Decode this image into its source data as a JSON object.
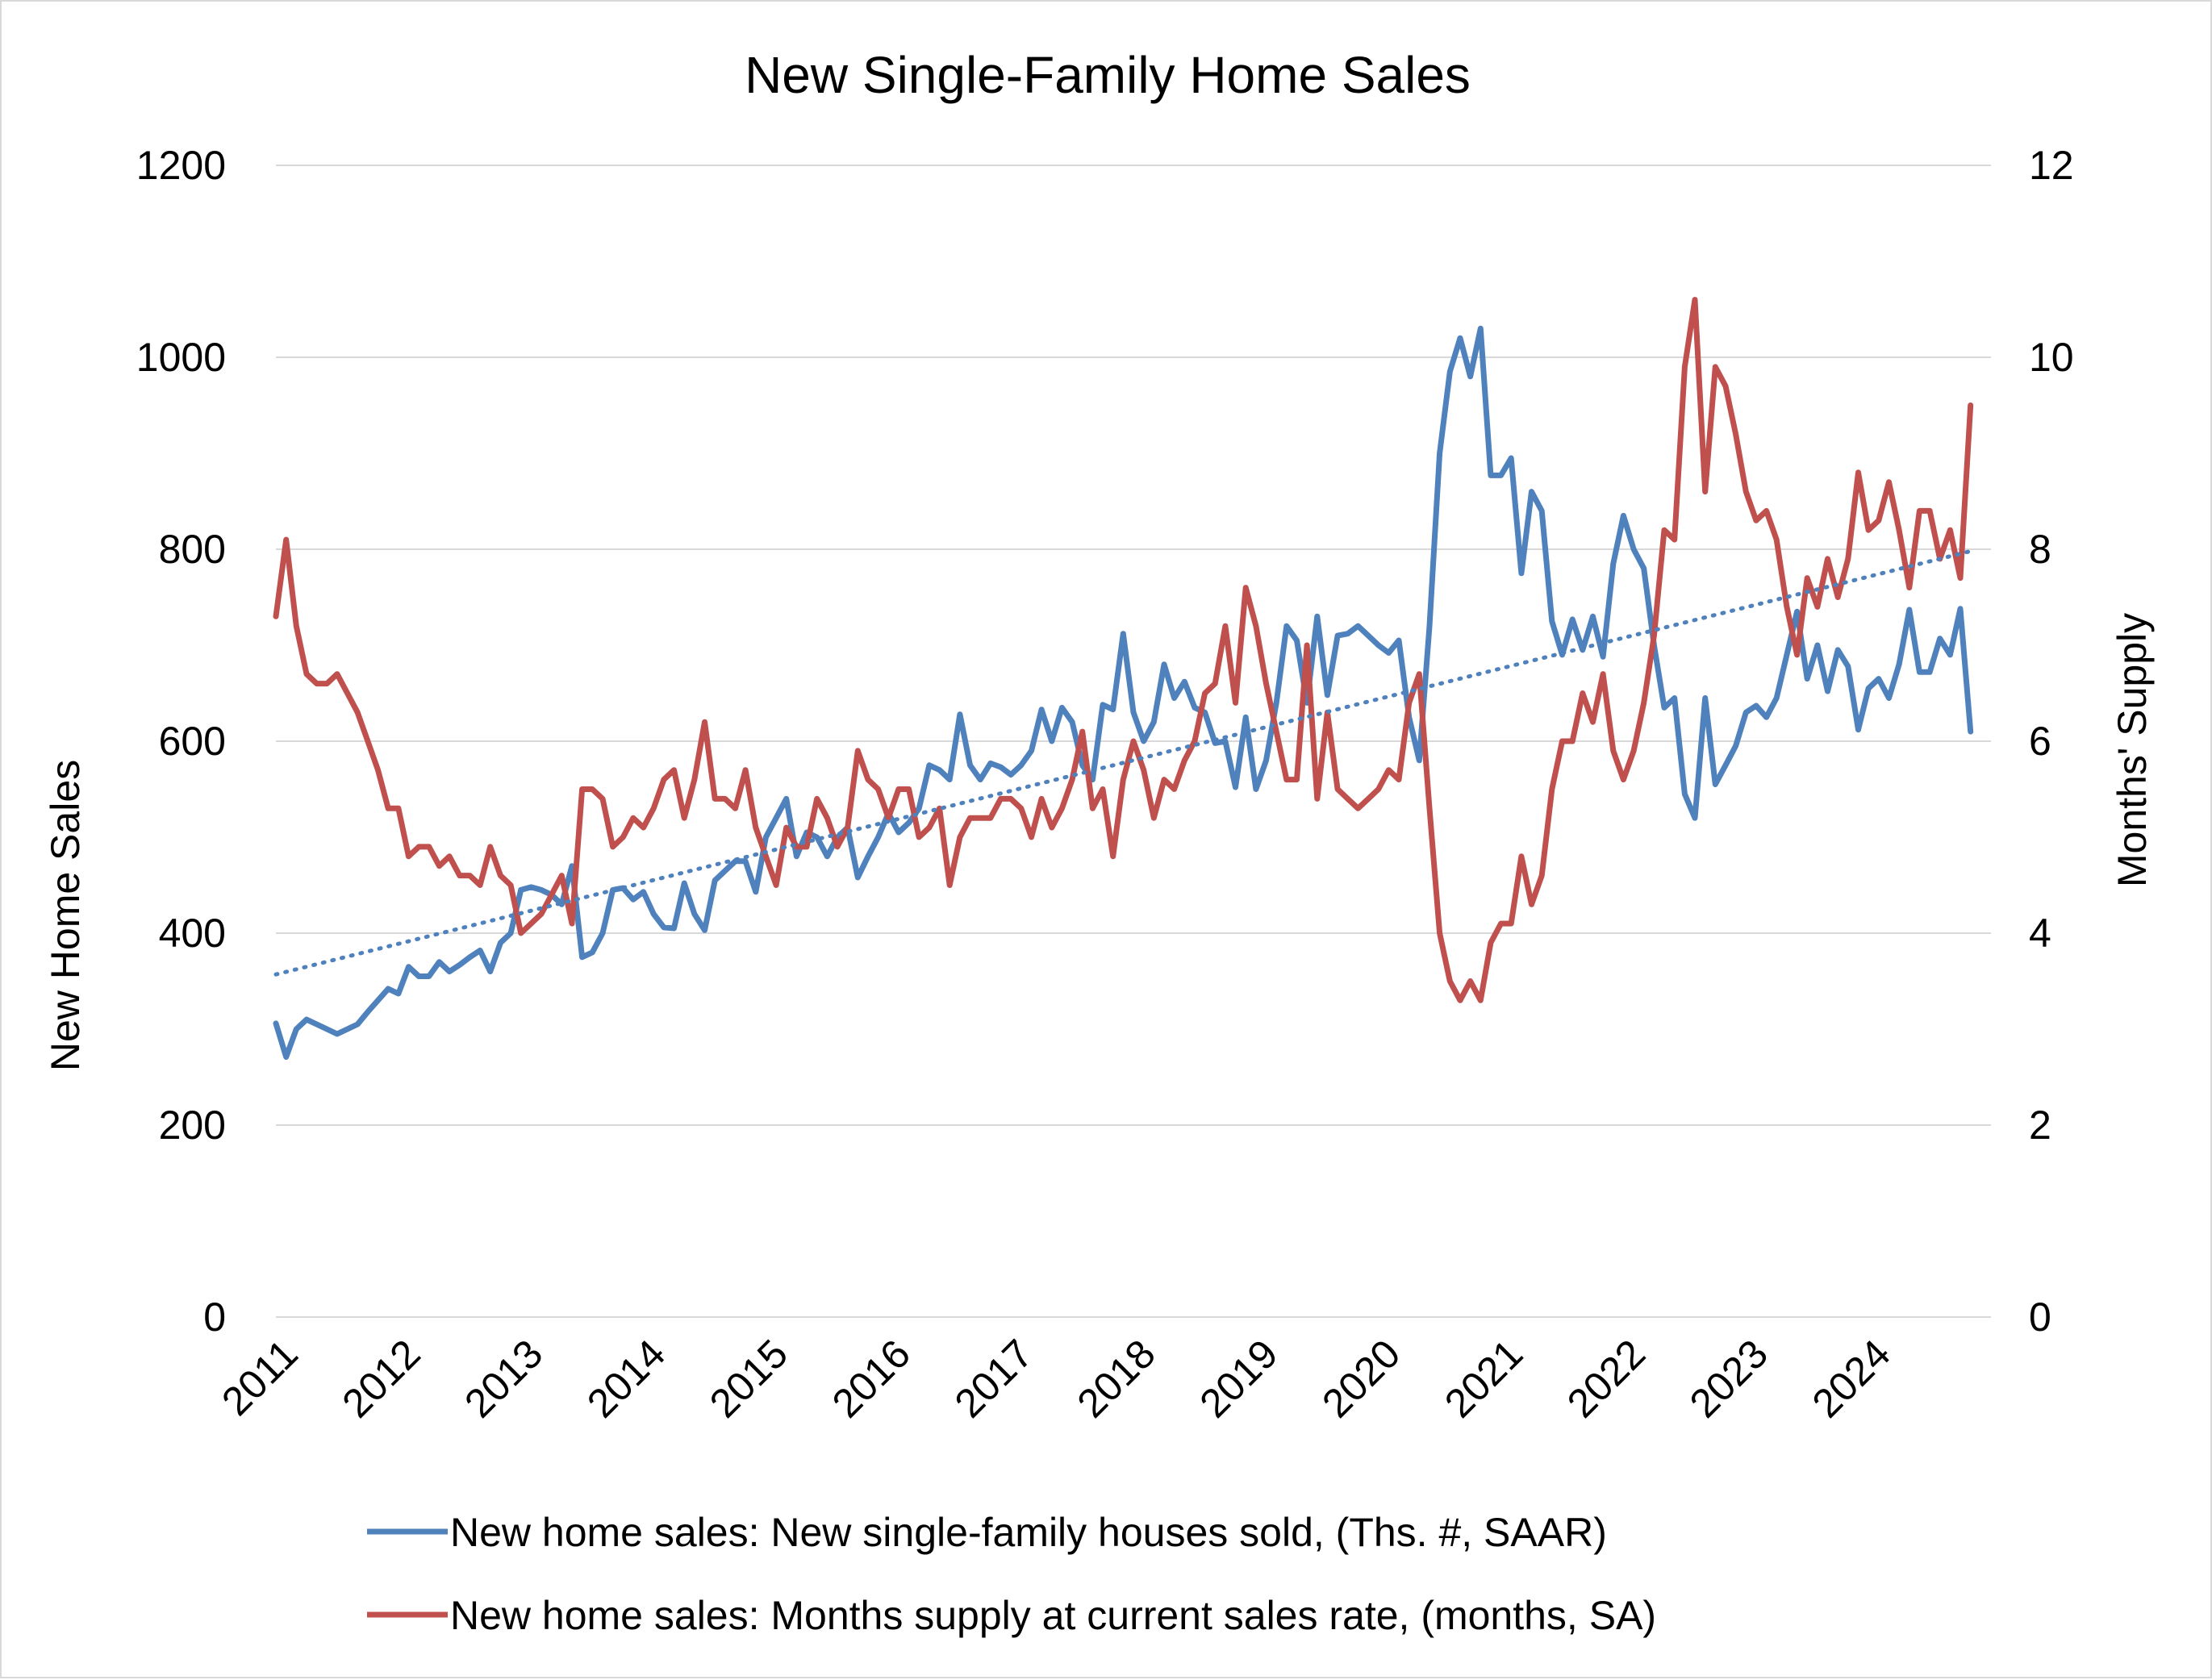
{
  "chart_data": {
    "type": "line",
    "title": "New Single-Family Home Sales",
    "ylabel": "New Home Sales",
    "y2label": "Months' Supply",
    "ylim": [
      0,
      1200
    ],
    "y2lim": [
      0,
      12
    ],
    "yticks": [
      "0",
      "200",
      "400",
      "600",
      "800",
      "1000",
      "1200"
    ],
    "y2ticks": [
      "0",
      "2",
      "4",
      "6",
      "8",
      "10",
      "12"
    ],
    "xlim": [
      2011.0,
      2025.0
    ],
    "xticks": [
      "2011",
      "2012",
      "2013",
      "2014",
      "2015",
      "2016",
      "2017",
      "2018",
      "2019",
      "2020",
      "2021",
      "2022",
      "2023",
      "2024"
    ],
    "grid": true,
    "legend_position": "bottom",
    "series": [
      {
        "name": "New home sales: New single-family houses sold, (Ths. #, SAAR)",
        "axis": "left",
        "color": "#4f81bd",
        "start": 2011.0,
        "step": 0.0833333,
        "values": [
          306,
          271,
          300,
          310,
          305,
          300,
          295,
          300,
          305,
          318,
          330,
          342,
          337,
          365,
          355,
          355,
          370,
          360,
          367,
          375,
          382,
          360,
          390,
          400,
          445,
          448,
          445,
          440,
          430,
          470,
          375,
          380,
          400,
          445,
          447,
          435,
          443,
          420,
          406,
          405,
          452,
          420,
          403,
          455,
          465,
          475,
          475,
          443,
          500,
          520,
          540,
          480,
          505,
          500,
          480,
          500,
          510,
          458,
          480,
          500,
          525,
          505,
          515,
          530,
          575,
          570,
          560,
          628,
          575,
          560,
          577,
          573,
          565,
          575,
          590,
          633,
          600,
          635,
          620,
          575,
          560,
          638,
          633,
          712,
          630,
          600,
          620,
          680,
          645,
          662,
          635,
          630,
          598,
          600,
          552,
          625,
          550,
          580,
          640,
          720,
          705,
          640,
          730,
          648,
          710,
          712,
          720,
          710,
          700,
          692,
          705,
          625,
          580,
          720,
          900,
          985,
          1020,
          980,
          1030,
          877,
          877,
          895,
          775,
          860,
          840,
          725,
          690,
          727,
          695,
          730,
          688,
          785,
          835,
          800,
          780,
          700,
          635,
          645,
          545,
          520,
          645,
          555,
          575,
          595,
          630,
          637,
          625,
          645,
          690,
          735,
          665,
          700,
          652,
          695,
          678,
          612,
          655,
          665,
          645,
          680,
          737,
          672,
          672,
          707,
          690,
          738,
          610
        ]
      },
      {
        "name": "New home sales: Months supply at current sales rate, (months, SA)",
        "axis": "right",
        "color": "#c0504d",
        "start": 2011.0,
        "step": 0.0833333,
        "values": [
          7.3,
          8.1,
          7.2,
          6.7,
          6.6,
          6.6,
          6.7,
          6.5,
          6.3,
          6.0,
          5.7,
          5.3,
          5.3,
          4.8,
          4.9,
          4.9,
          4.7,
          4.8,
          4.6,
          4.6,
          4.5,
          4.9,
          4.6,
          4.5,
          4.0,
          4.1,
          4.2,
          4.4,
          4.6,
          4.1,
          5.5,
          5.5,
          5.4,
          4.9,
          5.0,
          5.2,
          5.1,
          5.3,
          5.6,
          5.7,
          5.2,
          5.6,
          6.2,
          5.4,
          5.4,
          5.3,
          5.7,
          5.1,
          4.8,
          4.5,
          5.1,
          4.9,
          4.9,
          5.4,
          5.2,
          4.9,
          5.1,
          5.9,
          5.6,
          5.5,
          5.2,
          5.5,
          5.5,
          5.0,
          5.1,
          5.3,
          4.5,
          5.0,
          5.2,
          5.2,
          5.2,
          5.4,
          5.4,
          5.3,
          5.0,
          5.4,
          5.1,
          5.3,
          5.6,
          6.1,
          5.3,
          5.5,
          4.8,
          5.6,
          6.0,
          5.7,
          5.2,
          5.6,
          5.5,
          5.8,
          6.0,
          6.5,
          6.6,
          7.2,
          6.4,
          7.6,
          7.2,
          6.6,
          6.1,
          5.6,
          5.6,
          7.0,
          5.4,
          6.3,
          5.5,
          5.4,
          5.3,
          5.4,
          5.5,
          5.7,
          5.6,
          6.4,
          6.7,
          5.3,
          4.0,
          3.5,
          3.3,
          3.5,
          3.3,
          3.9,
          4.1,
          4.1,
          4.8,
          4.3,
          4.6,
          5.5,
          6.0,
          6.0,
          6.5,
          6.2,
          6.7,
          5.9,
          5.6,
          5.9,
          6.4,
          7.1,
          8.2,
          8.1,
          9.9,
          10.6,
          8.6,
          9.9,
          9.7,
          9.2,
          8.6,
          8.3,
          8.4,
          8.1,
          7.4,
          6.9,
          7.7,
          7.4,
          7.9,
          7.5,
          7.9,
          8.8,
          8.2,
          8.3,
          8.7,
          8.2,
          7.6,
          8.4,
          8.4,
          7.9,
          8.2,
          7.7,
          9.5
        ]
      }
    ],
    "trendline": {
      "of_series": "New home sales: New single-family houses sold, (Ths. #, SAAR)",
      "style": "dotted",
      "color": "#4f81bd",
      "y_start": 357,
      "y_end": 798
    }
  }
}
